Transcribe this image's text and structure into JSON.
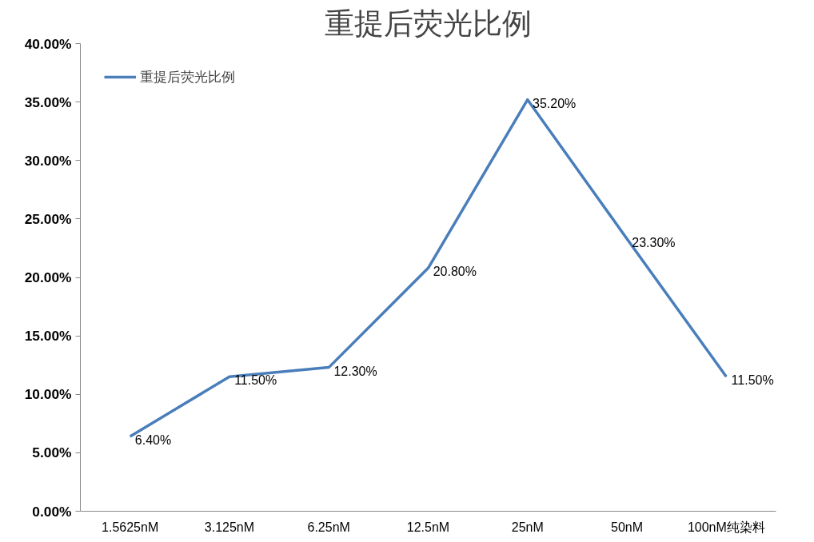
{
  "chart_data": {
    "type": "line",
    "title": "重提后荧光比例",
    "categories": [
      "1.5625nM",
      "3.125nM",
      "6.25nM",
      "12.5nM",
      "25nM",
      "50nM",
      "100nM纯染料"
    ],
    "series": [
      {
        "name": "重提后荧光比例",
        "color": "#4a7ebb",
        "values": [
          6.4,
          11.5,
          12.3,
          20.8,
          35.2,
          23.3,
          11.5
        ],
        "value_labels": [
          "6.40%",
          "11.50%",
          "12.30%",
          "20.80%",
          "35.20%",
          "23.30%",
          "11.50%"
        ]
      }
    ],
    "ylim": [
      0,
      40
    ],
    "yticks": [
      {
        "value": 0,
        "label": "0.00%"
      },
      {
        "value": 5,
        "label": "5.00%"
      },
      {
        "value": 10,
        "label": "10.00%"
      },
      {
        "value": 15,
        "label": "15.00%"
      },
      {
        "value": 20,
        "label": "20.00%"
      },
      {
        "value": 25,
        "label": "25.00%"
      },
      {
        "value": 30,
        "label": "30.00%"
      },
      {
        "value": 35,
        "label": "35.00%"
      },
      {
        "value": 40,
        "label": "40.00%"
      }
    ],
    "grid": false,
    "legend": "top left",
    "marker": "none",
    "line_style": "solid"
  }
}
